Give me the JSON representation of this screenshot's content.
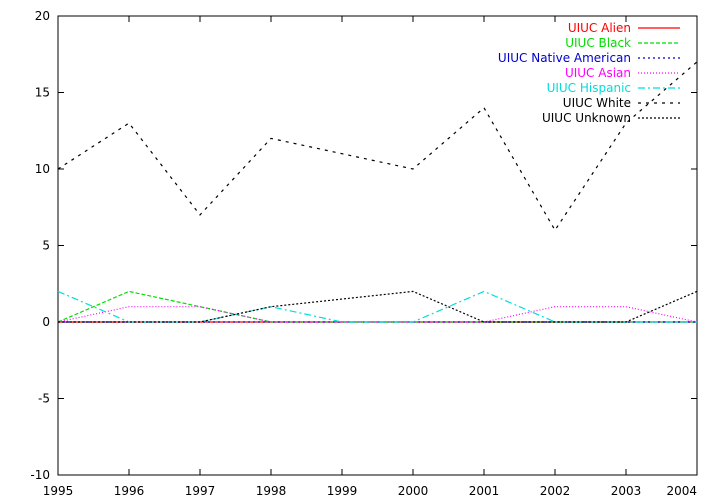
{
  "chart_data": {
    "type": "line",
    "title": "",
    "xlabel": "",
    "ylabel": "",
    "xlim": [
      1995,
      2004
    ],
    "ylim": [
      -10,
      20
    ],
    "x": [
      1995,
      1996,
      1997,
      1998,
      1999,
      2000,
      2001,
      2002,
      2003,
      2004
    ],
    "x_ticks": [
      "1995",
      "1996",
      "1997",
      "1998",
      "1999",
      "2000",
      "2001",
      "2002",
      "2003",
      "2004"
    ],
    "y_ticks": [
      "-10",
      "-5",
      "0",
      "5",
      "10",
      "15",
      "20"
    ],
    "grid": false,
    "legend_position": "top-right",
    "series": [
      {
        "name": "UIUC Alien",
        "color": "#ff0000",
        "dash": "",
        "values": [
          0,
          0,
          0,
          0,
          0,
          0,
          0,
          0,
          0,
          0
        ]
      },
      {
        "name": "UIUC Black",
        "color": "#00dd00",
        "dash": "4,2",
        "values": [
          0,
          2,
          1,
          0,
          0,
          0,
          0,
          0,
          0,
          0
        ]
      },
      {
        "name": "UIUC Native American",
        "color": "#0000cc",
        "dash": "2,3",
        "values": [
          0,
          0,
          0,
          0,
          0,
          0,
          0,
          0,
          0,
          0
        ]
      },
      {
        "name": "UIUC Asian",
        "color": "#ff00ff",
        "dash": "1,2",
        "values": [
          0,
          1,
          1,
          0,
          0,
          0,
          0,
          1,
          1,
          0
        ]
      },
      {
        "name": "UIUC Hispanic",
        "color": "#00dddd",
        "dash": "7,3,2,3",
        "values": [
          2,
          0,
          0,
          1,
          0,
          0,
          2,
          0,
          0,
          0
        ]
      },
      {
        "name": "UIUC White",
        "color": "#000000",
        "dash": "3,5",
        "values": [
          10,
          13,
          7,
          12,
          11,
          10,
          14,
          6,
          13,
          17
        ]
      },
      {
        "name": "UIUC Unknown",
        "color": "#000000",
        "dash": "2,2",
        "values": [
          0,
          0,
          0,
          1,
          1.5,
          2,
          0,
          0,
          0,
          2
        ]
      }
    ]
  }
}
